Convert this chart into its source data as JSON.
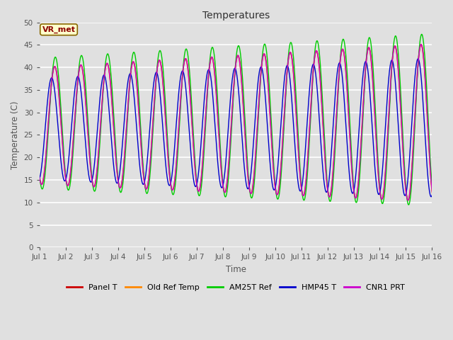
{
  "title": "Temperatures",
  "xlabel": "Time",
  "ylabel": "Temperature (C)",
  "annotation": "VR_met",
  "ylim": [
    0,
    50
  ],
  "xlim_days": [
    1,
    16
  ],
  "n_days": 15,
  "samples_per_day": 200,
  "series": {
    "Panel T": {
      "color": "#cc0000",
      "lw": 1.0,
      "phase": 0.0,
      "amp_scale": 1.0,
      "min_base": 14.0,
      "peak_base": 40.0
    },
    "Old Ref Temp": {
      "color": "#ff8800",
      "lw": 1.0,
      "phase": 0.01,
      "amp_scale": 1.0,
      "min_base": 14.0,
      "peak_base": 40.0
    },
    "AM25T Ref": {
      "color": "#00cc00",
      "lw": 1.0,
      "phase": -0.02,
      "amp_scale": 1.02,
      "min_base": 13.0,
      "peak_base": 41.5
    },
    "HMP45 T": {
      "color": "#0000cc",
      "lw": 1.0,
      "phase": 0.12,
      "amp_scale": 0.92,
      "min_base": 15.0,
      "peak_base": 39.5
    },
    "CNR1 PRT": {
      "color": "#cc00cc",
      "lw": 1.0,
      "phase": 0.005,
      "amp_scale": 1.0,
      "min_base": 14.0,
      "peak_base": 40.0
    }
  },
  "bg_color": "#e0e0e0",
  "plot_bg_color": "#e0e0e0",
  "grid_color": "#ffffff",
  "yticks": [
    0,
    5,
    10,
    15,
    20,
    25,
    30,
    35,
    40,
    45,
    50
  ],
  "xtick_labels": [
    "Jul 1",
    "Jul 2",
    "Jul 3",
    "Jul 4",
    "Jul 5",
    "Jul 6",
    "Jul 7",
    "Jul 8",
    "Jul 9",
    "Jul 10",
    "Jul 11",
    "Jul 12",
    "Jul 13",
    "Jul 14",
    "Jul 15",
    "Jul 16"
  ],
  "legend_ncol": 5
}
